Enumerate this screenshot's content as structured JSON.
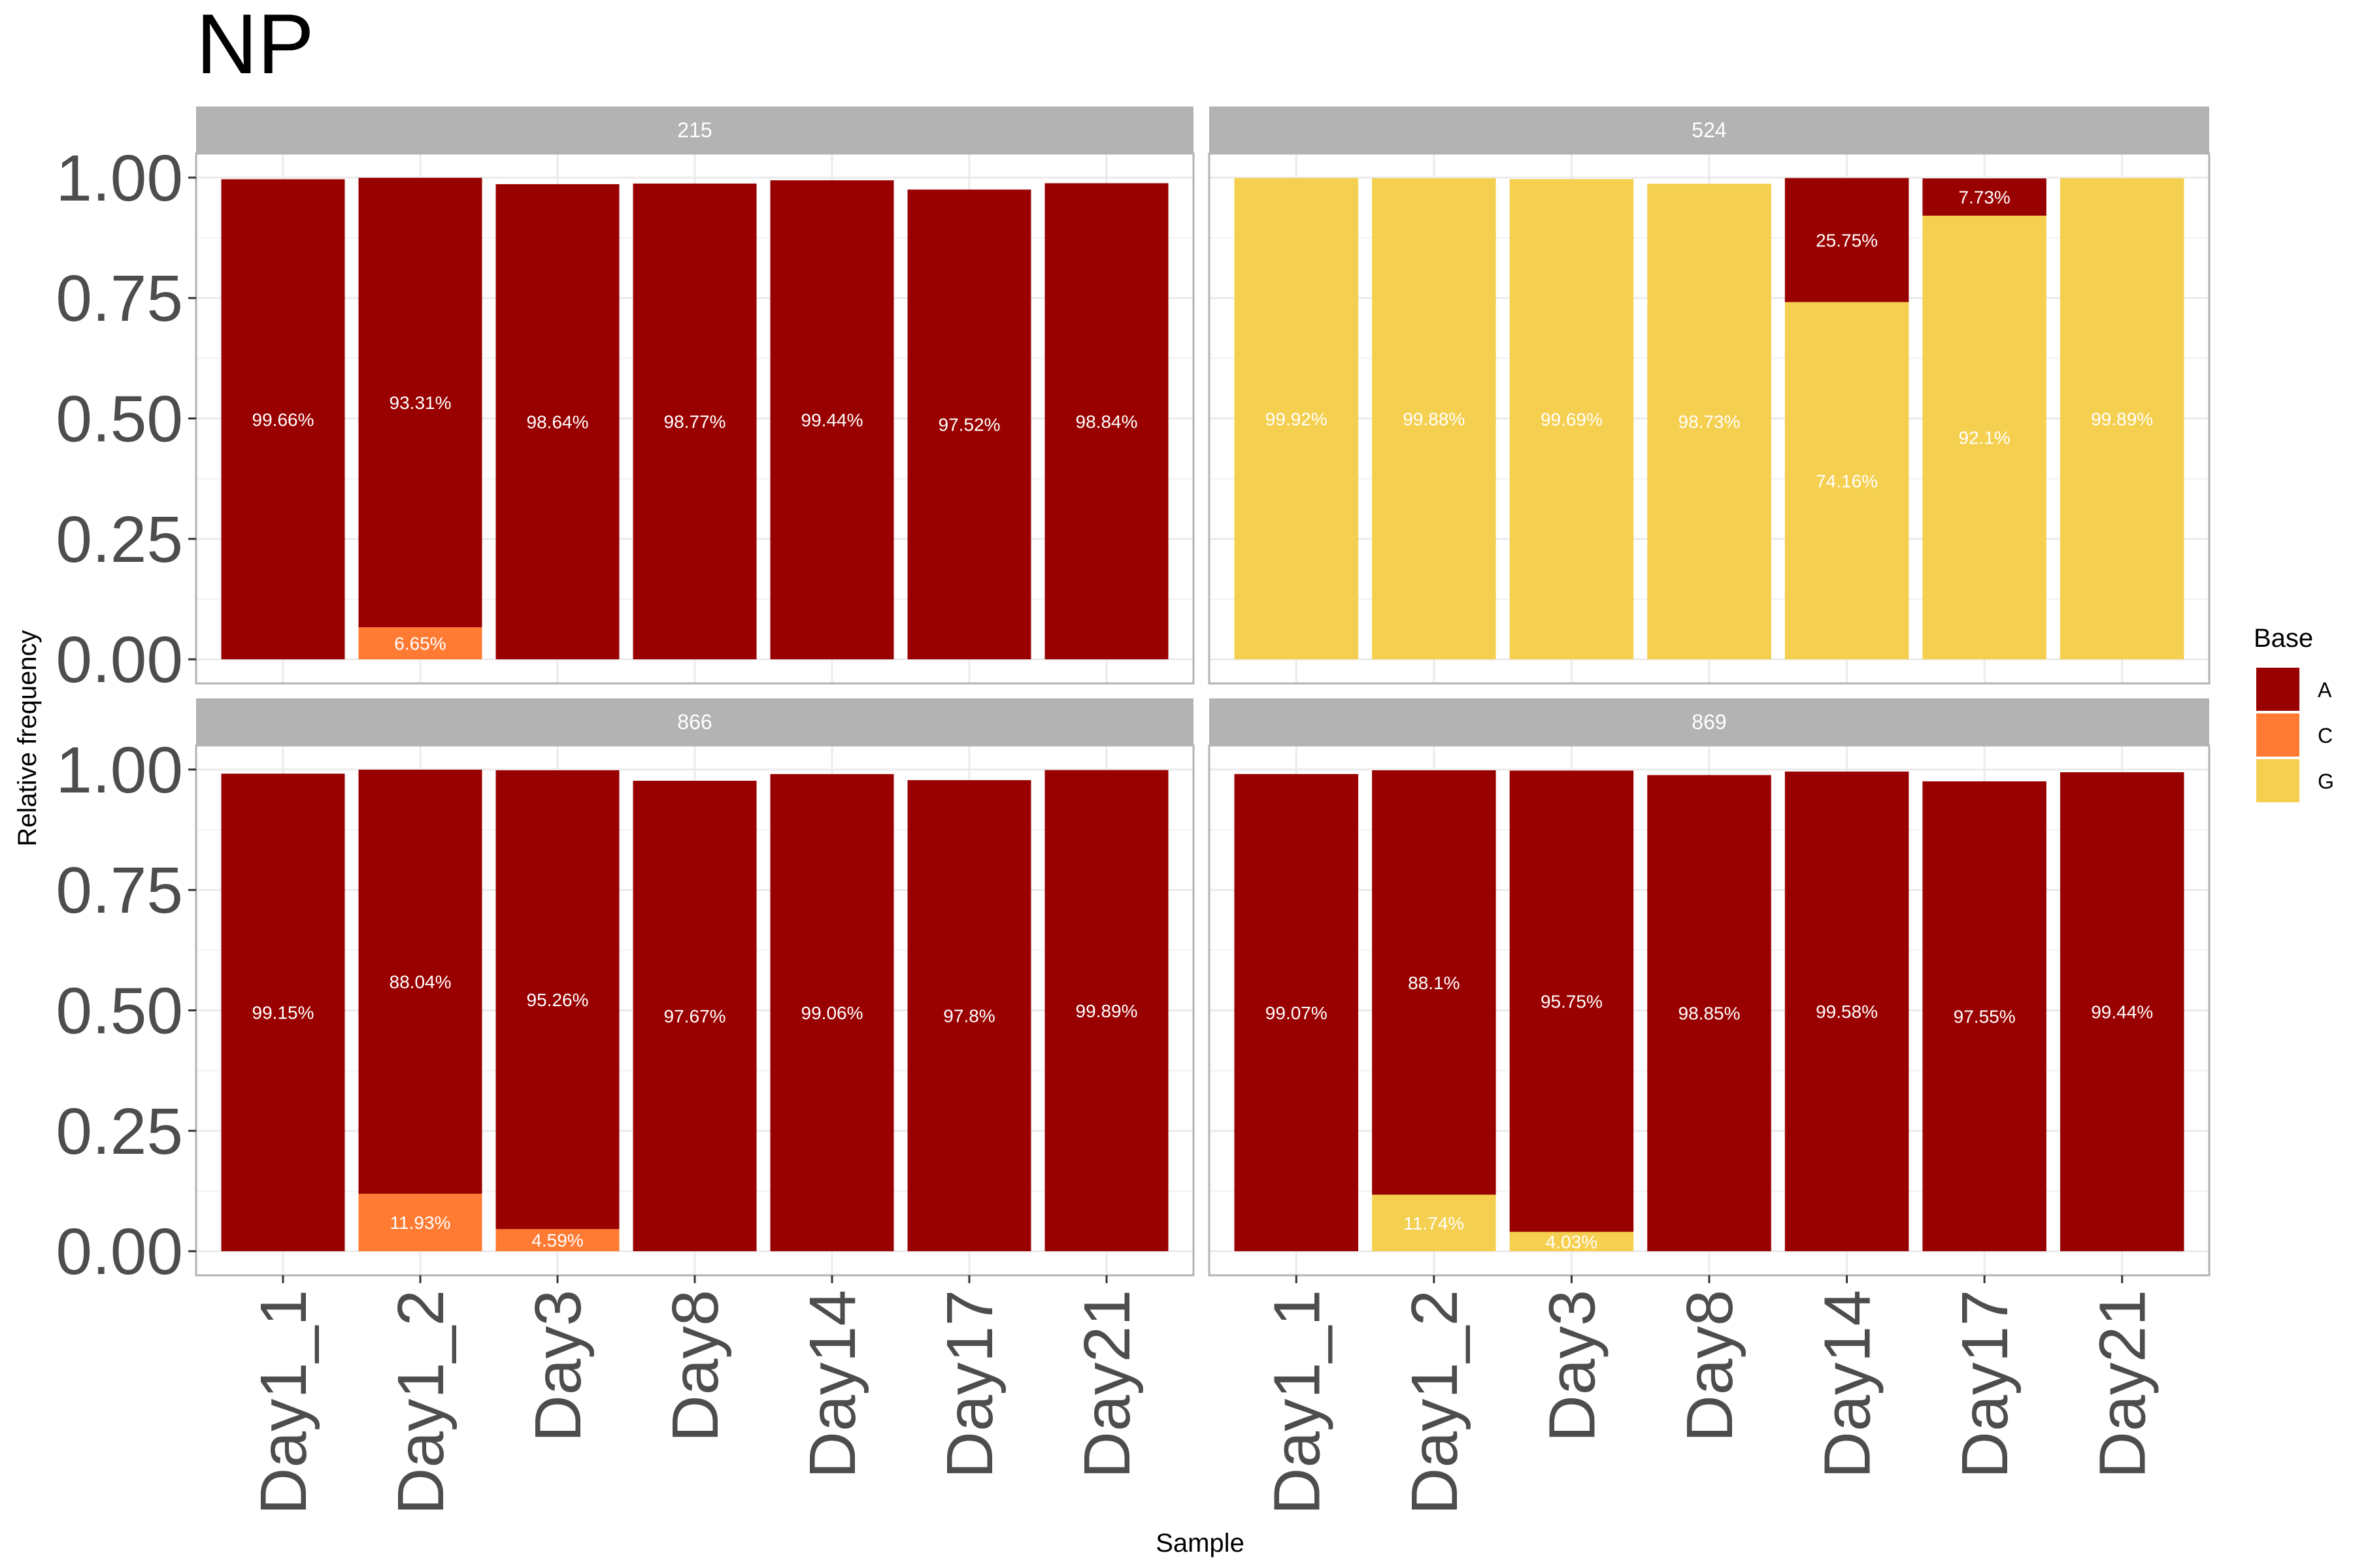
{
  "chart_data": {
    "type": "bar",
    "stacked": true,
    "title": "NP",
    "xlabel": "Sample",
    "ylabel": "Relative frequency",
    "ylim": [
      0,
      1
    ],
    "yticks": [
      "0.00",
      "0.25",
      "0.50",
      "0.75",
      "1.00"
    ],
    "categories": [
      "Day1_1",
      "Day1_2",
      "Day3",
      "Day8",
      "Day14",
      "Day17",
      "Day21"
    ],
    "legend": {
      "title": "Base",
      "position": "right",
      "items": [
        {
          "label": "A",
          "color": "#990000"
        },
        {
          "label": "C",
          "color": "#ff7b33"
        },
        {
          "label": "G",
          "color": "#f5cf4f"
        }
      ]
    },
    "grid": true,
    "panels": [
      {
        "strip": "215",
        "bars": [
          {
            "segments": [
              {
                "base": "A",
                "value": 0.9966,
                "label": "99.66%"
              }
            ]
          },
          {
            "segments": [
              {
                "base": "C",
                "value": 0.0665,
                "label": "6.65%"
              },
              {
                "base": "A",
                "value": 0.9331,
                "label": "93.31%"
              }
            ]
          },
          {
            "segments": [
              {
                "base": "A",
                "value": 0.9864,
                "label": "98.64%"
              }
            ]
          },
          {
            "segments": [
              {
                "base": "A",
                "value": 0.9877,
                "label": "98.77%"
              }
            ]
          },
          {
            "segments": [
              {
                "base": "A",
                "value": 0.9944,
                "label": "99.44%"
              }
            ]
          },
          {
            "segments": [
              {
                "base": "A",
                "value": 0.9752,
                "label": "97.52%"
              }
            ]
          },
          {
            "segments": [
              {
                "base": "A",
                "value": 0.9884,
                "label": "98.84%"
              }
            ]
          }
        ]
      },
      {
        "strip": "524",
        "bars": [
          {
            "segments": [
              {
                "base": "G",
                "value": 0.9992,
                "label": "99.92%"
              }
            ]
          },
          {
            "segments": [
              {
                "base": "G",
                "value": 0.9988,
                "label": "99.88%"
              }
            ]
          },
          {
            "segments": [
              {
                "base": "G",
                "value": 0.9969,
                "label": "99.69%"
              }
            ]
          },
          {
            "segments": [
              {
                "base": "G",
                "value": 0.9873,
                "label": "98.73%"
              }
            ]
          },
          {
            "segments": [
              {
                "base": "G",
                "value": 0.7416,
                "label": "74.16%"
              },
              {
                "base": "A",
                "value": 0.2575,
                "label": "25.75%"
              }
            ]
          },
          {
            "segments": [
              {
                "base": "G",
                "value": 0.921,
                "label": "92.1%"
              },
              {
                "base": "A",
                "value": 0.0773,
                "label": "7.73%"
              }
            ]
          },
          {
            "segments": [
              {
                "base": "G",
                "value": 0.9989,
                "label": "99.89%"
              }
            ]
          }
        ]
      },
      {
        "strip": "866",
        "bars": [
          {
            "segments": [
              {
                "base": "A",
                "value": 0.9915,
                "label": "99.15%"
              }
            ]
          },
          {
            "segments": [
              {
                "base": "C",
                "value": 0.1193,
                "label": "11.93%"
              },
              {
                "base": "A",
                "value": 0.8804,
                "label": "88.04%"
              }
            ]
          },
          {
            "segments": [
              {
                "base": "C",
                "value": 0.0459,
                "label": "4.59%"
              },
              {
                "base": "A",
                "value": 0.9526,
                "label": "95.26%"
              }
            ]
          },
          {
            "segments": [
              {
                "base": "A",
                "value": 0.9767,
                "label": "97.67%"
              }
            ]
          },
          {
            "segments": [
              {
                "base": "A",
                "value": 0.9906,
                "label": "99.06%"
              }
            ]
          },
          {
            "segments": [
              {
                "base": "A",
                "value": 0.978,
                "label": "97.8%"
              }
            ]
          },
          {
            "segments": [
              {
                "base": "A",
                "value": 0.9989,
                "label": "99.89%"
              }
            ]
          }
        ]
      },
      {
        "strip": "869",
        "bars": [
          {
            "segments": [
              {
                "base": "A",
                "value": 0.9907,
                "label": "99.07%"
              }
            ]
          },
          {
            "segments": [
              {
                "base": "G",
                "value": 0.1174,
                "label": "11.74%"
              },
              {
                "base": "A",
                "value": 0.881,
                "label": "88.1%"
              }
            ]
          },
          {
            "segments": [
              {
                "base": "G",
                "value": 0.0403,
                "label": "4.03%"
              },
              {
                "base": "A",
                "value": 0.9575,
                "label": "95.75%"
              }
            ]
          },
          {
            "segments": [
              {
                "base": "A",
                "value": 0.9885,
                "label": "98.85%"
              }
            ]
          },
          {
            "segments": [
              {
                "base": "A",
                "value": 0.9958,
                "label": "99.58%"
              }
            ]
          },
          {
            "segments": [
              {
                "base": "A",
                "value": 0.9755,
                "label": "97.55%"
              }
            ]
          },
          {
            "segments": [
              {
                "base": "A",
                "value": 0.9944,
                "label": "99.44%"
              }
            ]
          }
        ]
      }
    ]
  }
}
